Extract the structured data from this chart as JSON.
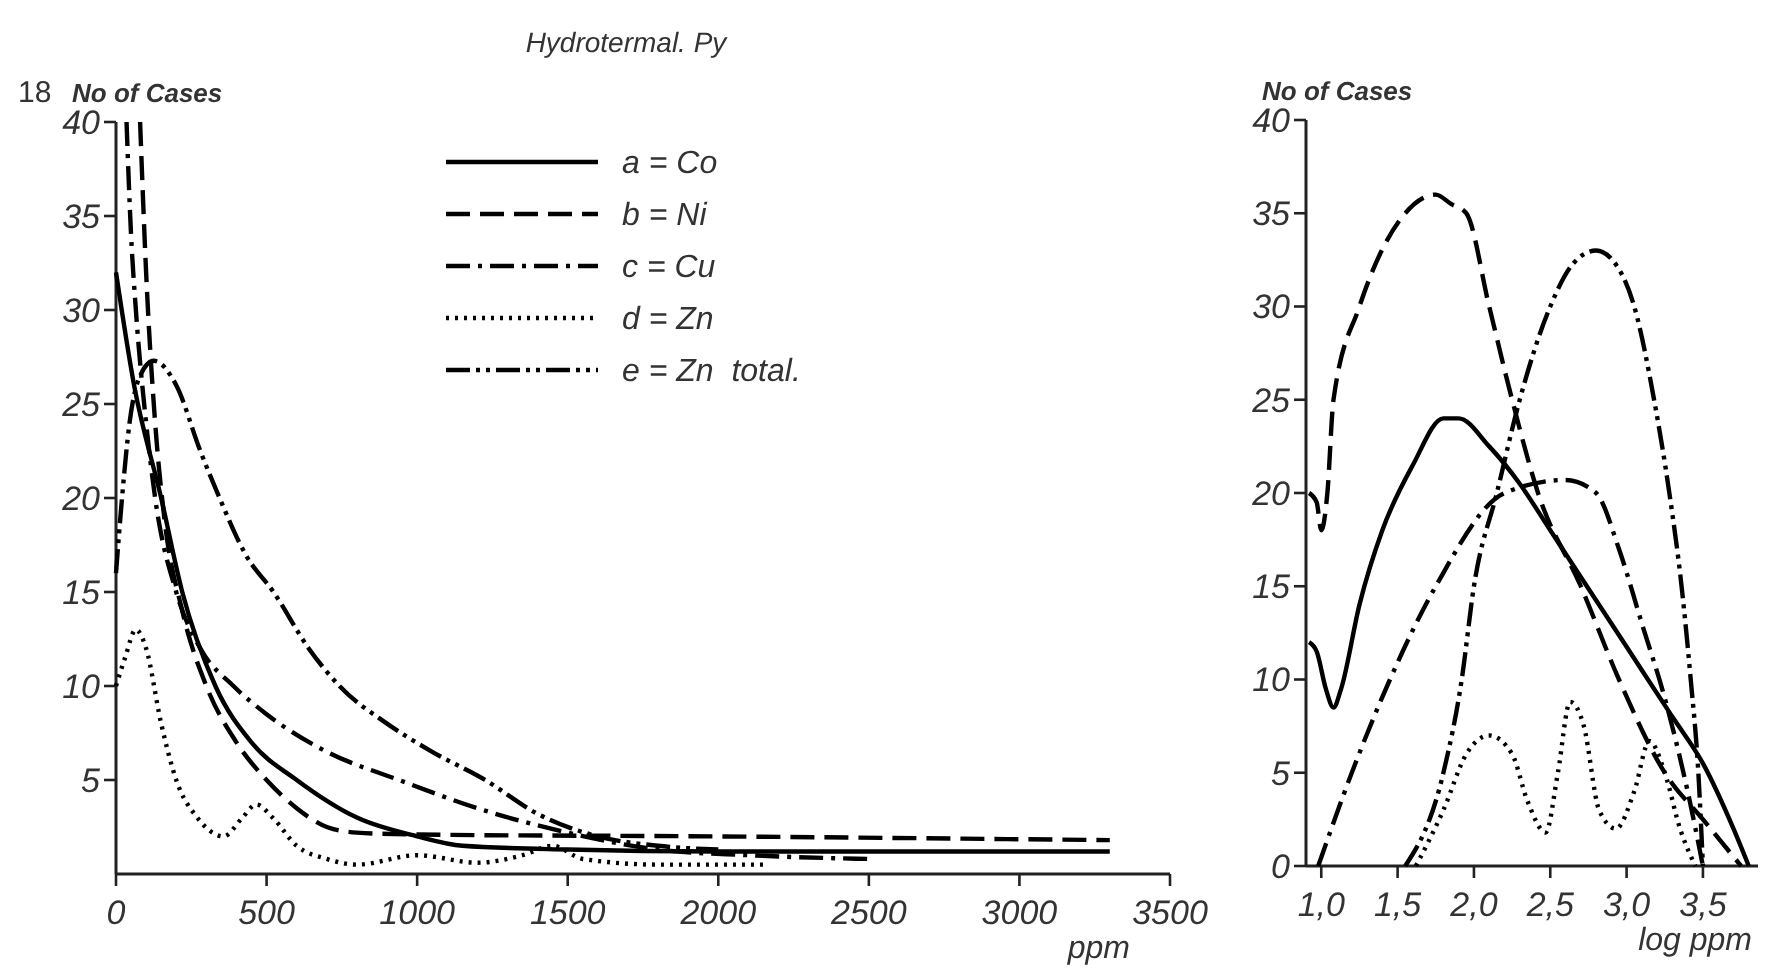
{
  "chart_data": [
    {
      "type": "line",
      "title": "Hydrotermal. Py",
      "ylabel": "No of Cases",
      "xlabel": "ppm",
      "annotations": [
        "18"
      ],
      "xlim": [
        0,
        3500
      ],
      "xticks": [
        0,
        500,
        1000,
        1500,
        2000,
        2500,
        3000,
        3500
      ],
      "ylim": [
        0,
        40
      ],
      "yticks": [
        5,
        10,
        15,
        20,
        25,
        30,
        35,
        40
      ],
      "grid": false,
      "legend": "top right",
      "series": [
        {
          "name": "a = Co",
          "color": "#000000",
          "line_style": "solid",
          "x": [
            0,
            60,
            150,
            220,
            330,
            450,
            600,
            800,
            1000,
            1150,
            1500,
            2000,
            3300
          ],
          "values": [
            32,
            26,
            20,
            15,
            10,
            7,
            5,
            3,
            2,
            1.5,
            1.3,
            1.2,
            1.2
          ]
        },
        {
          "name": "b = Ni",
          "color": "#000000",
          "line_style": "dashed",
          "x": [
            80,
            100,
            130,
            160,
            220,
            300,
            400,
            500,
            600,
            700,
            800,
            1000,
            2000,
            3300
          ],
          "values": [
            40,
            32,
            24,
            19,
            14,
            10,
            7,
            5,
            3.5,
            2.5,
            2.2,
            2.1,
            2,
            1.8
          ]
        },
        {
          "name": "c = Cu",
          "color": "#000000",
          "line_style": "dashdot",
          "x": [
            35,
            50,
            66,
            100,
            130,
            200,
            280,
            390,
            500,
            700,
            940,
            1200,
            1500,
            1800,
            2100,
            2500
          ],
          "values": [
            40,
            34,
            30,
            24,
            20,
            15,
            12,
            10,
            8.5,
            6.5,
            5,
            3.5,
            2.2,
            1.3,
            1,
            0.8
          ]
        },
        {
          "name": "d = Zn",
          "color": "#000000",
          "line_style": "dotted",
          "x": [
            0,
            30,
            66,
            100,
            150,
            200,
            270,
            357,
            420,
            466,
            520,
            600,
            700,
            800,
            1000,
            1200,
            1350,
            1450,
            1550,
            1800,
            2150
          ],
          "values": [
            10,
            11.5,
            13,
            12,
            8,
            5,
            3,
            2,
            3,
            3.7,
            3,
            1.5,
            0.8,
            0.5,
            1,
            0.6,
            1,
            1.5,
            0.8,
            0.5,
            0.5
          ]
        },
        {
          "name": "e = Zn  total.",
          "color": "#000000",
          "line_style": "dashdotdot",
          "x": [
            0,
            20,
            45,
            80,
            125,
            200,
            280,
            344,
            430,
            523,
            640,
            742,
            900,
            1050,
            1226,
            1400,
            1600,
            1800,
            2000
          ],
          "values": [
            16,
            20,
            24,
            26.5,
            27.3,
            26,
            22.5,
            20,
            17,
            15,
            12,
            10,
            8,
            6.5,
            5,
            3.2,
            2,
            1.5,
            1.3
          ]
        }
      ]
    },
    {
      "type": "line",
      "ylabel": "No of Cases",
      "xlabel": "log ppm",
      "xlim": [
        0.9,
        3.9
      ],
      "xticks": [
        {
          "value": 1,
          "label": "1,0"
        },
        {
          "value": 1.5,
          "label": "1,5"
        },
        {
          "value": 2,
          "label": "2,0"
        },
        {
          "value": 2.5,
          "label": "2,5"
        },
        {
          "value": 3,
          "label": "3,0"
        },
        {
          "value": 3.5,
          "label": "3,5"
        }
      ],
      "ylim": [
        0,
        40
      ],
      "yticks": [
        0,
        5,
        10,
        15,
        20,
        25,
        30,
        35,
        40
      ],
      "grid": false,
      "legend": false,
      "series": [
        {
          "color": "#000000",
          "line_style": "solid",
          "x": [
            0.92,
            0.97,
            1.03,
            1.08,
            1.13,
            1.25,
            1.4,
            1.6,
            1.8,
            1.9,
            2.1,
            2.3,
            2.5,
            2.7,
            2.9,
            3.1,
            3.3,
            3.5,
            3.7,
            3.8
          ],
          "values": [
            12,
            11.5,
            9.5,
            8.5,
            9.5,
            14,
            18,
            21.5,
            24,
            24,
            22.5,
            20.5,
            18,
            15.5,
            13,
            10.5,
            8,
            5.5,
            2,
            0
          ]
        },
        {
          "color": "#000000",
          "line_style": "dashed",
          "x": [
            0.92,
            0.97,
            1.0,
            1.04,
            1.08,
            1.25,
            1.55,
            1.75,
            1.85,
            1.95,
            2.1,
            2.25,
            2.42,
            2.7,
            2.95,
            3.25,
            3.5,
            3.75
          ],
          "values": [
            20,
            19.5,
            18,
            20,
            25,
            30,
            35,
            36,
            35.5,
            35,
            30,
            25,
            20,
            15,
            10,
            5,
            2.5,
            0
          ]
        },
        {
          "color": "#000000",
          "line_style": "dashdot",
          "x": [
            0.98,
            1.2,
            1.45,
            1.75,
            2.2,
            2.6,
            2.8,
            2.95,
            3.1,
            3.25,
            3.4,
            3.5
          ],
          "values": [
            0,
            5,
            10,
            15,
            20,
            20.7,
            20,
            17,
            13,
            9,
            4,
            0
          ]
        },
        {
          "color": "#000000",
          "line_style": "dotted",
          "x": [
            1.62,
            1.8,
            1.95,
            2.1,
            2.25,
            2.35,
            2.47,
            2.55,
            2.63,
            2.72,
            2.82,
            2.93,
            3.05,
            3.15,
            3.25,
            3.35,
            3.45
          ],
          "values": [
            0,
            3,
            6,
            7,
            6,
            3.5,
            1.8,
            5,
            8.8,
            7.5,
            3,
            2,
            4,
            6.7,
            5,
            2,
            0
          ]
        },
        {
          "color": "#000000",
          "line_style": "dashdotdot",
          "x": [
            1.55,
            1.8,
            1.92,
            2.0,
            2.15,
            2.3,
            2.5,
            2.65,
            2.8,
            2.95,
            3.05,
            3.18,
            3.28,
            3.36,
            3.42,
            3.47,
            3.5
          ],
          "values": [
            0,
            5,
            10,
            15,
            20,
            25,
            30,
            32.3,
            33,
            32,
            30,
            25,
            20,
            15,
            10,
            5,
            0
          ]
        }
      ]
    }
  ]
}
